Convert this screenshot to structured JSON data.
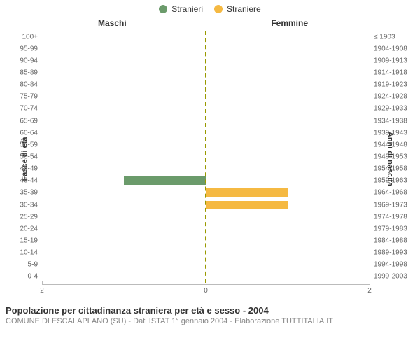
{
  "legend": {
    "male": {
      "label": "Stranieri",
      "color": "#6b9b6b"
    },
    "female": {
      "label": "Straniere",
      "color": "#f5b942"
    }
  },
  "columns": {
    "left_title": "Maschi",
    "right_title": "Femmine"
  },
  "axes": {
    "left_title": "Fasce di età",
    "right_title": "Anni di nascita",
    "x_max": 2,
    "x_ticks_left": [
      2,
      0
    ],
    "x_ticks_right": [
      2
    ],
    "center_line_color": "#999900"
  },
  "rows": [
    {
      "age": "100+",
      "birth": "≤ 1903",
      "m": 0,
      "f": 0
    },
    {
      "age": "95-99",
      "birth": "1904-1908",
      "m": 0,
      "f": 0
    },
    {
      "age": "90-94",
      "birth": "1909-1913",
      "m": 0,
      "f": 0
    },
    {
      "age": "85-89",
      "birth": "1914-1918",
      "m": 0,
      "f": 0
    },
    {
      "age": "80-84",
      "birth": "1919-1923",
      "m": 0,
      "f": 0
    },
    {
      "age": "75-79",
      "birth": "1924-1928",
      "m": 0,
      "f": 0
    },
    {
      "age": "70-74",
      "birth": "1929-1933",
      "m": 0,
      "f": 0
    },
    {
      "age": "65-69",
      "birth": "1934-1938",
      "m": 0,
      "f": 0
    },
    {
      "age": "60-64",
      "birth": "1939-1943",
      "m": 0,
      "f": 0
    },
    {
      "age": "55-59",
      "birth": "1944-1948",
      "m": 0,
      "f": 0
    },
    {
      "age": "50-54",
      "birth": "1949-1953",
      "m": 0,
      "f": 0
    },
    {
      "age": "45-49",
      "birth": "1954-1958",
      "m": 0,
      "f": 0
    },
    {
      "age": "40-44",
      "birth": "1959-1963",
      "m": 1,
      "f": 0
    },
    {
      "age": "35-39",
      "birth": "1964-1968",
      "m": 0,
      "f": 1
    },
    {
      "age": "30-34",
      "birth": "1969-1973",
      "m": 0,
      "f": 1
    },
    {
      "age": "25-29",
      "birth": "1974-1978",
      "m": 0,
      "f": 0
    },
    {
      "age": "20-24",
      "birth": "1979-1983",
      "m": 0,
      "f": 0
    },
    {
      "age": "15-19",
      "birth": "1984-1988",
      "m": 0,
      "f": 0
    },
    {
      "age": "10-14",
      "birth": "1989-1993",
      "m": 0,
      "f": 0
    },
    {
      "age": "5-9",
      "birth": "1994-1998",
      "m": 0,
      "f": 0
    },
    {
      "age": "0-4",
      "birth": "1999-2003",
      "m": 0,
      "f": 0
    }
  ],
  "caption": {
    "title": "Popolazione per cittadinanza straniera per età e sesso - 2004",
    "subtitle": "COMUNE DI ESCALAPLANO (SU) - Dati ISTAT 1° gennaio 2004 - Elaborazione TUTTITALIA.IT"
  },
  "style": {
    "background_color": "#ffffff",
    "grid_color": "#bbbbbb",
    "text_color": "#333333",
    "tick_color": "#666666",
    "label_fontsize": 10,
    "title_fontsize": 13
  }
}
